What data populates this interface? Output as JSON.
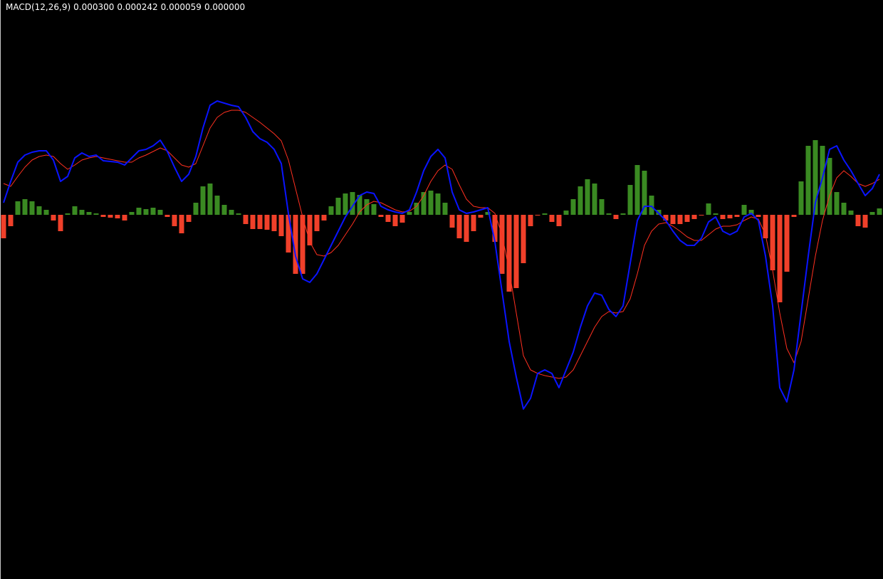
{
  "chart_data": {
    "type": "macd",
    "title": "MACD(12,26,9)",
    "readout": [
      "0.000300",
      "0.000242",
      "0.000059",
      "0.000000"
    ],
    "ylim": [
      -0.00256,
      0.00151
    ],
    "histogram": {
      "positive_color": "#3a8a22",
      "negative_color": "#f0402a",
      "values": [
        -0.000165,
        -8e-05,
        9.5e-05,
        0.00011,
        9.5e-05,
        6e-05,
        3.5e-05,
        -4e-05,
        -0.000115,
        1e-05,
        6e-05,
        3.5e-05,
        2e-05,
        1e-05,
        -1.5e-05,
        -2e-05,
        -2.5e-05,
        -4e-05,
        2e-05,
        5e-05,
        4e-05,
        5e-05,
        3.5e-05,
        -1.5e-05,
        -8e-05,
        -0.00013,
        -5e-05,
        8.5e-05,
        0.0002,
        0.00022,
        0.000135,
        7e-05,
        3.5e-05,
        1e-05,
        -6.5e-05,
        -0.0001,
        -0.0001,
        -0.000105,
        -0.000115,
        -0.00015,
        -0.000265,
        -0.000415,
        -0.000415,
        -0.000215,
        -0.000115,
        -4e-05,
        6e-05,
        0.00012,
        0.00015,
        0.00016,
        0.00014,
        0.00011,
        7.5e-05,
        -1.5e-05,
        -5e-05,
        -8e-05,
        -5.5e-05,
        2e-05,
        8.5e-05,
        0.00016,
        0.00017,
        0.00015,
        8.5e-05,
        -9e-05,
        -0.000165,
        -0.00019,
        -0.000115,
        -2e-05,
        2e-05,
        -0.00019,
        -0.000415,
        -0.00054,
        -0.000515,
        -0.00034,
        -8e-05,
        -5e-06,
        1e-05,
        -5e-05,
        -8e-05,
        3e-05,
        0.00011,
        0.0002,
        0.00025,
        0.00022,
        0.00011,
        1e-05,
        -3e-05,
        1e-05,
        0.00021,
        0.00035,
        0.00031,
        0.000135,
        3.5e-05,
        -4e-05,
        -6.5e-05,
        -6.5e-05,
        -5e-05,
        -3e-05,
        -5e-06,
        8e-05,
        1e-05,
        -3e-05,
        -2.5e-05,
        -1.5e-05,
        7e-05,
        3.5e-05,
        -1.5e-05,
        -0.000165,
        -0.00039,
        -0.000615,
        -0.0004,
        -1.5e-05,
        0.000235,
        0.000485,
        0.000525,
        0.000485,
        0.0004,
        0.00016,
        8.5e-05,
        3e-05,
        -8e-05,
        -9e-05,
        2e-05,
        4.5e-05
      ]
    },
    "macd": {
      "color": "#0a14ff",
      "values": [
        8.5e-05,
        0.000235,
        0.00037,
        0.00042,
        0.00044,
        0.00045,
        0.00045,
        0.000385,
        0.000235,
        0.00027,
        0.0004,
        0.000435,
        0.00041,
        0.00042,
        0.00038,
        0.000375,
        0.00037,
        0.00035,
        0.0004,
        0.00045,
        0.00046,
        0.000485,
        0.000525,
        0.000445,
        0.000335,
        0.000235,
        0.000285,
        0.00041,
        0.00061,
        0.00077,
        0.0008,
        0.000785,
        0.00077,
        0.00076,
        0.000685,
        0.000585,
        0.000535,
        0.00051,
        0.00046,
        0.00036,
        1e-05,
        -0.00029,
        -0.00045,
        -0.000475,
        -0.000415,
        -0.000315,
        -0.000215,
        -0.000115,
        -1.5e-05,
        6e-05,
        0.000135,
        0.00016,
        0.00015,
        6e-05,
        3.5e-05,
        2e-05,
        1e-05,
        3.5e-05,
        0.00016,
        0.00031,
        0.00041,
        0.00046,
        0.0004,
        0.00016,
        3.5e-05,
        1e-05,
        2e-05,
        3.5e-05,
        5e-05,
        -0.00019,
        -0.00054,
        -0.00089,
        -0.00114,
        -0.001365,
        -0.00129,
        -0.001115,
        -0.00109,
        -0.001115,
        -0.001215,
        -0.00109,
        -0.000965,
        -0.00079,
        -0.00064,
        -0.00055,
        -0.000565,
        -0.000665,
        -0.000715,
        -0.00064,
        -0.00034,
        -4e-05,
        6e-05,
        6e-05,
        1e-05,
        -4e-05,
        -0.000115,
        -0.00018,
        -0.000215,
        -0.000215,
        -0.000165,
        -5e-05,
        -1.5e-05,
        -0.000115,
        -0.00014,
        -0.000115,
        -1.5e-05,
        1e-05,
        -4e-05,
        -0.00029,
        -0.00064,
        -0.001215,
        -0.001315,
        -0.00109,
        -0.00069,
        -0.00029,
        8.5e-05,
        0.00026,
        0.00046,
        0.000485,
        0.000385,
        0.00031,
        0.00022,
        0.000135,
        0.000185,
        0.000285
      ]
    },
    "signal": {
      "color": "#ff3020",
      "values": [
        0.00022,
        0.0002,
        0.00027,
        0.000335,
        0.000385,
        0.00041,
        0.00042,
        0.00041,
        0.00036,
        0.00032,
        0.00035,
        0.000385,
        0.0004,
        0.00041,
        0.0004,
        0.00039,
        0.00038,
        0.00037,
        0.00037,
        0.0004,
        0.00042,
        0.000445,
        0.00047,
        0.00045,
        0.0004,
        0.00035,
        0.000335,
        0.00036,
        0.000485,
        0.00061,
        0.000685,
        0.00072,
        0.000735,
        0.000735,
        0.00072,
        0.000685,
        0.00065,
        0.00061,
        0.00057,
        0.00052,
        0.000385,
        0.000185,
        -1.5e-05,
        -0.00019,
        -0.00028,
        -0.00029,
        -0.000265,
        -0.000215,
        -0.00014,
        -6.5e-05,
        2e-05,
        7e-05,
        9.5e-05,
        8.5e-05,
        6e-05,
        3.5e-05,
        2e-05,
        2.5e-05,
        6e-05,
        0.000135,
        0.000235,
        0.00031,
        0.00035,
        0.00032,
        0.00021,
        0.00011,
        6e-05,
        5e-05,
        5e-05,
        1e-05,
        -0.00014,
        -0.00039,
        -0.00069,
        -0.00099,
        -0.00109,
        -0.001115,
        -0.00113,
        -0.00114,
        -0.00115,
        -0.00114,
        -0.00109,
        -0.00099,
        -0.00089,
        -0.00079,
        -0.000715,
        -0.00068,
        -0.00069,
        -0.00068,
        -0.00059,
        -0.000415,
        -0.000215,
        -0.000115,
        -6.5e-05,
        -5.5e-05,
        -8e-05,
        -0.000115,
        -0.000155,
        -0.00018,
        -0.00018,
        -0.00014,
        -0.0001,
        -8e-05,
        -8e-05,
        -7e-05,
        -4e-05,
        -1.5e-05,
        -3e-05,
        -0.00014,
        -0.00039,
        -0.00069,
        -0.00094,
        -0.00104,
        -0.00089,
        -0.00059,
        -0.00029,
        -4e-05,
        0.000135,
        0.00026,
        0.00031,
        0.00027,
        0.00022,
        0.0002,
        0.00022,
        0.00025
      ]
    }
  }
}
